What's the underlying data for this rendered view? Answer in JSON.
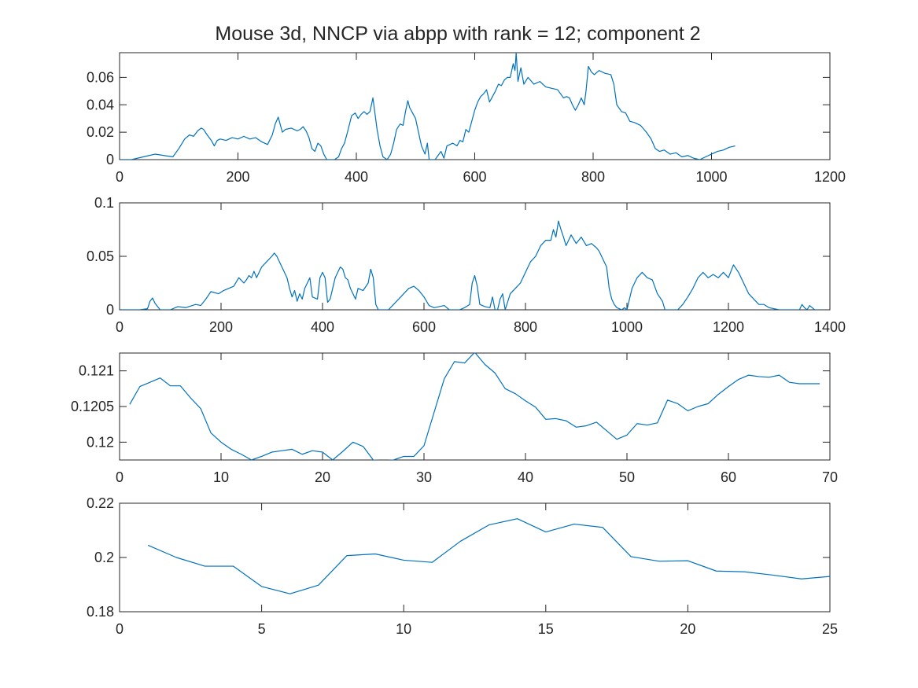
{
  "figure": {
    "title": "Mouse 3d, NNCP via abpp with rank = 12; component 2",
    "line_color": "#0072BD",
    "axis_color": "#262626"
  },
  "chart_data": [
    {
      "type": "line",
      "xlim": [
        0,
        1200
      ],
      "ylim": [
        0,
        0.078
      ],
      "xticks": [
        0,
        200,
        400,
        600,
        800,
        1000,
        1200
      ],
      "xtick_labels": [
        "0",
        "200",
        "400",
        "600",
        "800",
        "1000",
        "1200"
      ],
      "yticks": [
        0,
        0.02,
        0.04,
        0.06
      ],
      "ytick_labels": [
        "0",
        "0.02",
        "0.04",
        "0.06"
      ],
      "grid": false,
      "x": [
        1,
        20,
        30,
        50,
        60,
        75,
        90,
        100,
        110,
        118,
        125,
        132,
        138,
        142,
        148,
        155,
        160,
        165,
        170,
        180,
        190,
        200,
        210,
        220,
        230,
        240,
        250,
        258,
        263,
        268,
        275,
        280,
        290,
        300,
        305,
        310,
        315,
        320,
        325,
        330,
        335,
        340,
        345,
        350,
        357,
        363,
        370,
        375,
        380,
        385,
        392,
        398,
        403,
        408,
        413,
        418,
        423,
        428,
        435,
        440,
        445,
        452,
        458,
        463,
        468,
        474,
        479,
        483,
        487,
        490,
        495,
        500,
        505,
        510,
        516,
        520,
        523,
        528,
        533,
        538,
        543,
        548,
        553,
        558,
        563,
        570,
        575,
        580,
        585,
        590,
        595,
        600,
        605,
        610,
        615,
        620,
        625,
        630,
        635,
        640,
        645,
        650,
        655,
        660,
        665,
        668,
        670,
        673,
        678,
        683,
        690,
        700,
        710,
        720,
        730,
        740,
        745,
        750,
        755,
        760,
        765,
        770,
        775,
        780,
        785,
        788,
        792,
        797,
        802,
        810,
        820,
        830,
        835,
        840,
        848,
        855,
        862,
        870,
        880,
        890,
        898,
        905,
        912,
        920,
        930,
        940,
        950,
        960,
        970,
        980,
        990,
        1000,
        1010,
        1020,
        1030,
        1040
      ],
      "y": [
        0,
        0,
        0.001,
        0.003,
        0.004,
        0.003,
        0.002,
        0.008,
        0.015,
        0.018,
        0.017,
        0.021,
        0.023,
        0.022,
        0.018,
        0.014,
        0.01,
        0.014,
        0.015,
        0.014,
        0.016,
        0.015,
        0.017,
        0.015,
        0.016,
        0.013,
        0.011,
        0.018,
        0.026,
        0.031,
        0.02,
        0.022,
        0.023,
        0.021,
        0.022,
        0.024,
        0.021,
        0.016,
        0.008,
        0.006,
        0.012,
        0.01,
        0.004,
        0.0,
        0.0,
        0.0,
        0.002,
        0.008,
        0.012,
        0.02,
        0.032,
        0.034,
        0.03,
        0.033,
        0.035,
        0.033,
        0.035,
        0.045,
        0.022,
        0.01,
        0.002,
        0.0,
        0.004,
        0.012,
        0.022,
        0.026,
        0.025,
        0.035,
        0.043,
        0.038,
        0.034,
        0.03,
        0.02,
        0.01,
        0.004,
        0.012,
        0.0,
        0.0,
        0.0,
        0.003,
        0.006,
        0.001,
        0.01,
        0.011,
        0.012,
        0.01,
        0.014,
        0.013,
        0.022,
        0.02,
        0.028,
        0.036,
        0.042,
        0.046,
        0.048,
        0.051,
        0.042,
        0.046,
        0.05,
        0.055,
        0.054,
        0.058,
        0.06,
        0.06,
        0.07,
        0.065,
        0.078,
        0.057,
        0.067,
        0.055,
        0.06,
        0.055,
        0.057,
        0.053,
        0.052,
        0.051,
        0.048,
        0.045,
        0.046,
        0.045,
        0.04,
        0.036,
        0.04,
        0.045,
        0.04,
        0.05,
        0.068,
        0.064,
        0.062,
        0.065,
        0.063,
        0.062,
        0.055,
        0.04,
        0.035,
        0.034,
        0.028,
        0.027,
        0.025,
        0.02,
        0.015,
        0.008,
        0.006,
        0.007,
        0.004,
        0.005,
        0.002,
        0.003,
        0.001,
        0.0,
        0.002,
        0.004,
        0.006,
        0.007,
        0.009,
        0.01
      ]
    },
    {
      "type": "line",
      "xlim": [
        0,
        1400
      ],
      "ylim": [
        0,
        0.1
      ],
      "xticks": [
        0,
        200,
        400,
        600,
        800,
        1000,
        1200,
        1400
      ],
      "xtick_labels": [
        "0",
        "200",
        "400",
        "600",
        "800",
        "1000",
        "1200",
        "1400"
      ],
      "yticks": [
        0,
        0.05,
        0.1
      ],
      "ytick_labels": [
        "0",
        "0.05",
        "0.1"
      ],
      "grid": false,
      "x": [
        1,
        40,
        55,
        60,
        65,
        70,
        80,
        100,
        115,
        130,
        150,
        160,
        170,
        180,
        195,
        205,
        215,
        225,
        235,
        245,
        250,
        255,
        260,
        265,
        270,
        275,
        280,
        290,
        300,
        305,
        310,
        320,
        330,
        335,
        340,
        345,
        350,
        355,
        360,
        365,
        370,
        375,
        380,
        390,
        395,
        400,
        405,
        410,
        415,
        420,
        425,
        430,
        435,
        440,
        445,
        450,
        455,
        460,
        465,
        470,
        480,
        490,
        495,
        500,
        505,
        510,
        520,
        530,
        540,
        550,
        560,
        570,
        580,
        590,
        600,
        610,
        620,
        630,
        640,
        650,
        660,
        670,
        680,
        690,
        695,
        700,
        705,
        710,
        720,
        730,
        735,
        740,
        745,
        750,
        755,
        760,
        770,
        780,
        790,
        800,
        810,
        820,
        830,
        840,
        850,
        855,
        860,
        865,
        870,
        875,
        880,
        890,
        900,
        910,
        920,
        930,
        940,
        945,
        950,
        960,
        965,
        970,
        975,
        980,
        990,
        995,
        1000,
        1010,
        1020,
        1030,
        1040,
        1050,
        1060,
        1070,
        1075,
        1080,
        1090,
        1100,
        1110,
        1120,
        1130,
        1140,
        1150,
        1160,
        1170,
        1180,
        1190,
        1200,
        1210,
        1220,
        1230,
        1240,
        1250,
        1260,
        1270,
        1280,
        1300,
        1320,
        1340,
        1345,
        1350,
        1355,
        1360,
        1370,
        1380
      ],
      "y": [
        0.0,
        0.0,
        0.001,
        0.008,
        0.011,
        0.006,
        0.0,
        0.0,
        0.003,
        0.002,
        0.005,
        0.004,
        0.01,
        0.017,
        0.015,
        0.018,
        0.02,
        0.022,
        0.03,
        0.025,
        0.028,
        0.032,
        0.03,
        0.036,
        0.03,
        0.035,
        0.04,
        0.045,
        0.05,
        0.053,
        0.05,
        0.04,
        0.03,
        0.02,
        0.012,
        0.018,
        0.008,
        0.015,
        0.01,
        0.02,
        0.025,
        0.03,
        0.012,
        0.01,
        0.03,
        0.035,
        0.03,
        0.007,
        0.01,
        0.02,
        0.03,
        0.035,
        0.04,
        0.038,
        0.03,
        0.028,
        0.02,
        0.015,
        0.01,
        0.02,
        0.018,
        0.025,
        0.038,
        0.03,
        0.005,
        0.0,
        0.0,
        0.0,
        0.005,
        0.01,
        0.015,
        0.02,
        0.022,
        0.018,
        0.012,
        0.004,
        0.002,
        0.003,
        0.004,
        0.0,
        0.0,
        0.0,
        0.002,
        0.005,
        0.025,
        0.032,
        0.022,
        0.005,
        0.003,
        0.002,
        0.012,
        0.0,
        0.0,
        0.01,
        0.015,
        0.0,
        0.015,
        0.02,
        0.025,
        0.035,
        0.045,
        0.05,
        0.06,
        0.065,
        0.065,
        0.075,
        0.068,
        0.083,
        0.075,
        0.068,
        0.06,
        0.07,
        0.062,
        0.068,
        0.06,
        0.062,
        0.058,
        0.055,
        0.05,
        0.04,
        0.02,
        0.01,
        0.005,
        0.002,
        0.0,
        0.002,
        0.0,
        0.02,
        0.03,
        0.035,
        0.03,
        0.028,
        0.015,
        0.008,
        0.0,
        0.0,
        0.0,
        0.0,
        0.005,
        0.012,
        0.02,
        0.03,
        0.035,
        0.03,
        0.033,
        0.03,
        0.035,
        0.03,
        0.042,
        0.035,
        0.025,
        0.015,
        0.01,
        0.005,
        0.005,
        0.002,
        0.0,
        0.0,
        0.0,
        0.005,
        0.002,
        0.0,
        0.004,
        0.0,
        0.0
      ],
      "note_series_mask": []
    },
    {
      "type": "line",
      "xlim": [
        0,
        70
      ],
      "ylim": [
        0.11975,
        0.12125
      ],
      "xticks": [
        0,
        10,
        20,
        30,
        40,
        50,
        60,
        70
      ],
      "xtick_labels": [
        "0",
        "10",
        "20",
        "30",
        "40",
        "50",
        "60",
        "70"
      ],
      "yticks": [
        0.12,
        0.1205,
        0.121
      ],
      "ytick_labels": [
        "0.12",
        "0.1205",
        "0.121"
      ],
      "grid": false,
      "x": [
        1,
        2,
        3,
        4,
        5,
        6,
        7,
        8,
        9,
        10,
        11,
        12,
        13,
        14,
        15,
        16,
        17,
        18,
        19,
        20,
        21,
        22,
        23,
        24,
        25,
        26,
        27,
        28,
        29,
        30,
        31,
        32,
        33,
        34,
        35,
        36,
        37,
        38,
        39,
        40,
        41,
        42,
        43,
        44,
        45,
        46,
        47,
        48,
        49,
        50,
        51,
        52,
        53,
        54,
        55,
        56,
        57,
        58,
        59,
        60,
        61,
        62,
        63,
        64,
        65,
        66,
        67,
        68,
        69
      ],
      "y": [
        0.12053,
        0.12078,
        0.12084,
        0.1209,
        0.12079,
        0.12079,
        0.12062,
        0.12047,
        0.12013,
        0.12,
        0.1199,
        0.11983,
        0.11975,
        0.1198,
        0.11986,
        0.11988,
        0.1199,
        0.11983,
        0.11988,
        0.11986,
        0.11975,
        0.11987,
        0.12,
        0.11994,
        0.11975,
        0.11974,
        0.11975,
        0.1198,
        0.1198,
        0.11995,
        0.12042,
        0.12089,
        0.12113,
        0.12111,
        0.12126,
        0.12109,
        0.12097,
        0.12075,
        0.12068,
        0.12058,
        0.12049,
        0.12032,
        0.12033,
        0.1203,
        0.12021,
        0.12023,
        0.12028,
        0.12016,
        0.12004,
        0.1201,
        0.12026,
        0.12024,
        0.12027,
        0.12059,
        0.12054,
        0.12044,
        0.1205,
        0.12054,
        0.12067,
        0.12078,
        0.12088,
        0.12094,
        0.12092,
        0.12091,
        0.12094,
        0.12084,
        0.12082,
        0.12082,
        0.12082
      ]
    },
    {
      "type": "line",
      "xlim": [
        0,
        25
      ],
      "ylim": [
        0.18,
        0.22
      ],
      "xticks": [
        0,
        5,
        10,
        15,
        20,
        25
      ],
      "xtick_labels": [
        "0",
        "5",
        "10",
        "15",
        "20",
        "25"
      ],
      "yticks": [
        0.18,
        0.2,
        0.22
      ],
      "ytick_labels": [
        "0.18",
        "0.2",
        "0.22"
      ],
      "grid": false,
      "x": [
        1,
        2,
        3,
        4,
        5,
        6,
        7,
        8,
        9,
        10,
        11,
        12,
        13,
        14,
        15,
        16,
        17,
        18,
        19,
        20,
        21,
        22,
        23,
        24,
        25
      ],
      "y": [
        0.2045,
        0.2,
        0.1968,
        0.1968,
        0.1893,
        0.1866,
        0.1898,
        0.2007,
        0.2013,
        0.199,
        0.1982,
        0.206,
        0.212,
        0.2143,
        0.2094,
        0.2123,
        0.2111,
        0.2003,
        0.1986,
        0.1988,
        0.195,
        0.1947,
        0.1935,
        0.1921,
        0.193
      ]
    }
  ]
}
